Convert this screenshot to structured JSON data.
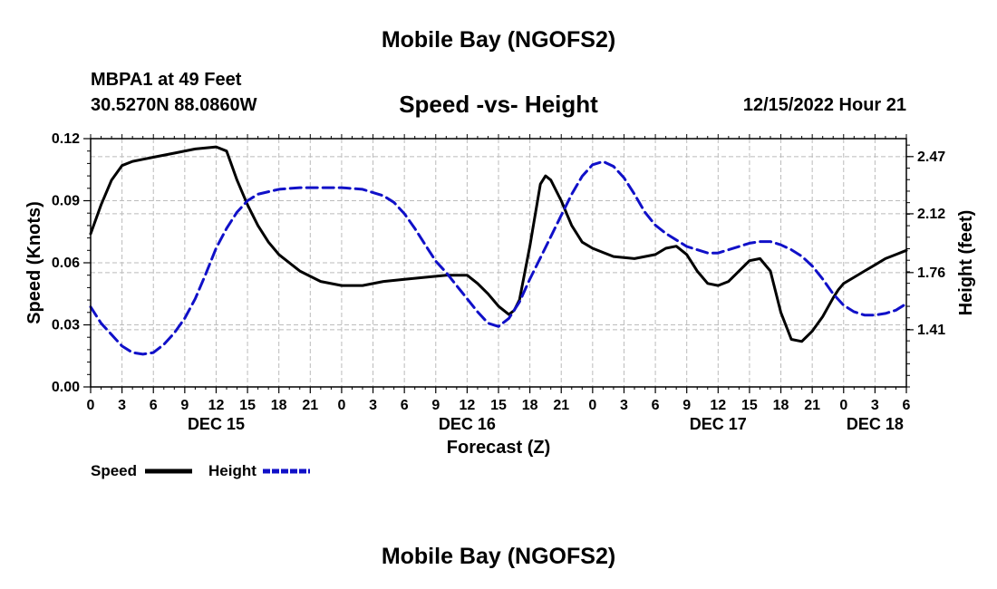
{
  "header": {
    "title": "Mobile Bay (NGOFS2)",
    "station": "MBPA1 at 49 Feet",
    "coords": "30.5270N  88.0860W",
    "subtitle": "Speed -vs- Height",
    "datestamp": "12/15/2022 Hour 21"
  },
  "footer": {
    "title": "Mobile Bay (NGOFS2)"
  },
  "chart_data": {
    "type": "line",
    "title": "Speed -vs- Height",
    "xlabel": "Forecast (Z)",
    "ylabel": "Speed (Knots)",
    "y2label": "Height (feet)",
    "x_range": [
      0,
      78
    ],
    "ylim": [
      0,
      0.12
    ],
    "y2lim": [
      1.06,
      2.58
    ],
    "y_ticks": [
      "0.00",
      "0.03",
      "0.06",
      "0.09",
      "0.12"
    ],
    "y_tick_values": [
      0,
      0.03,
      0.06,
      0.09,
      0.12
    ],
    "y2_ticks": [
      "1.41",
      "1.76",
      "2.12",
      "2.47"
    ],
    "y2_tick_values": [
      1.41,
      1.76,
      2.12,
      2.47
    ],
    "x_ticks": [
      "0",
      "3",
      "6",
      "9",
      "12",
      "15",
      "18",
      "21",
      "0",
      "3",
      "6",
      "9",
      "12",
      "15",
      "18",
      "21",
      "0",
      "3",
      "6",
      "9",
      "12",
      "15",
      "18",
      "21",
      "0",
      "3",
      "6"
    ],
    "date_labels": [
      {
        "text": "DEC 15",
        "hour": 12
      },
      {
        "text": "DEC 16",
        "hour": 36
      },
      {
        "text": "DEC 17",
        "hour": 60
      },
      {
        "text": "DEC 18",
        "hour": 75
      }
    ],
    "legend": [
      {
        "name": "Speed",
        "color": "#000000",
        "style": "solid"
      },
      {
        "name": "Height",
        "color": "#1010c8",
        "style": "dashed"
      }
    ],
    "legend_position": "bottom-left",
    "series": [
      {
        "name": "Speed",
        "axis": "left",
        "color": "#000000",
        "x": [
          0,
          1,
          2,
          3,
          4,
          5,
          6,
          8,
          10,
          12,
          13,
          14,
          15,
          16,
          17,
          18,
          20,
          22,
          24,
          26,
          28,
          30,
          32,
          34,
          36,
          37,
          38,
          39,
          40,
          40.5,
          41,
          42,
          43,
          43.5,
          44,
          45,
          46,
          47,
          48,
          49,
          50,
          52,
          54,
          55,
          56,
          57,
          58,
          59,
          60,
          61,
          62,
          63,
          64,
          65,
          66,
          67,
          68,
          69,
          70,
          71,
          71.5,
          72,
          73,
          74,
          75,
          76,
          77,
          78
        ],
        "y": [
          0.074,
          0.088,
          0.1,
          0.107,
          0.109,
          0.11,
          0.111,
          0.113,
          0.115,
          0.116,
          0.114,
          0.1,
          0.088,
          0.078,
          0.07,
          0.064,
          0.056,
          0.051,
          0.049,
          0.049,
          0.051,
          0.052,
          0.053,
          0.054,
          0.054,
          0.05,
          0.045,
          0.039,
          0.035,
          0.037,
          0.042,
          0.068,
          0.098,
          0.102,
          0.1,
          0.09,
          0.078,
          0.07,
          0.067,
          0.065,
          0.063,
          0.062,
          0.064,
          0.067,
          0.068,
          0.064,
          0.056,
          0.05,
          0.049,
          0.051,
          0.056,
          0.061,
          0.062,
          0.056,
          0.036,
          0.023,
          0.022,
          0.027,
          0.034,
          0.043,
          0.047,
          0.05,
          0.053,
          0.056,
          0.059,
          0.062,
          0.064,
          0.066
        ]
      },
      {
        "name": "Height",
        "axis": "right",
        "color": "#1010c8",
        "x": [
          0,
          1,
          2,
          3,
          4,
          5,
          6,
          7,
          8,
          9,
          10,
          11,
          12,
          13,
          14,
          15,
          16,
          18,
          20,
          22,
          24,
          26,
          28,
          29,
          30,
          31,
          32,
          33,
          34,
          35,
          36,
          37,
          38,
          39,
          40,
          41,
          42,
          43,
          44,
          45,
          46,
          47,
          48,
          49,
          50,
          51,
          52,
          53,
          54,
          55,
          56,
          57,
          58,
          59,
          60,
          61,
          62,
          63,
          64,
          65,
          66,
          67,
          68,
          69,
          70,
          71,
          72,
          73,
          74,
          75,
          76,
          77,
          78
        ],
        "y": [
          1.55,
          1.45,
          1.38,
          1.31,
          1.27,
          1.26,
          1.27,
          1.32,
          1.39,
          1.48,
          1.6,
          1.75,
          1.91,
          2.03,
          2.13,
          2.2,
          2.24,
          2.27,
          2.28,
          2.28,
          2.28,
          2.27,
          2.23,
          2.19,
          2.12,
          2.03,
          1.93,
          1.83,
          1.76,
          1.68,
          1.6,
          1.52,
          1.45,
          1.43,
          1.48,
          1.58,
          1.72,
          1.85,
          1.98,
          2.11,
          2.24,
          2.35,
          2.42,
          2.44,
          2.41,
          2.34,
          2.24,
          2.13,
          2.05,
          2.0,
          1.96,
          1.92,
          1.9,
          1.88,
          1.88,
          1.9,
          1.92,
          1.94,
          1.95,
          1.95,
          1.93,
          1.9,
          1.86,
          1.8,
          1.72,
          1.63,
          1.56,
          1.52,
          1.5,
          1.5,
          1.51,
          1.53,
          1.57
        ]
      }
    ]
  }
}
